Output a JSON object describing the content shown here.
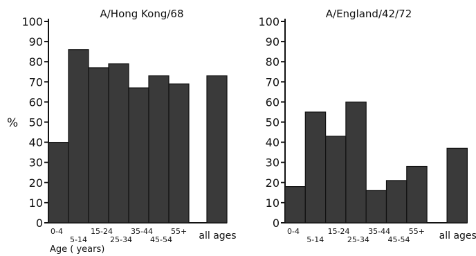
{
  "figure": {
    "y_symbol": "%",
    "x_caption": "Age ( years)"
  },
  "chart_data": [
    {
      "type": "bar",
      "title": "A/Hong Kong/68",
      "ylabel": "%",
      "xlabel": "Age ( years)",
      "ylim": [
        0,
        100
      ],
      "yticks": [
        0,
        10,
        20,
        30,
        40,
        50,
        60,
        70,
        80,
        90,
        100
      ],
      "categories": [
        "0-4",
        "5-14",
        "15-24",
        "25-34",
        "35-44",
        "45-54",
        "55+",
        "all ages"
      ],
      "values": [
        40,
        86,
        77,
        79,
        67,
        73,
        69,
        73
      ],
      "bar_color": "#3a3a3a"
    },
    {
      "type": "bar",
      "title": "A/England/42/72",
      "ylabel": "%",
      "xlabel": "",
      "ylim": [
        0,
        100
      ],
      "yticks": [
        0,
        10,
        20,
        30,
        40,
        50,
        60,
        70,
        80,
        90,
        100
      ],
      "categories": [
        "0-4",
        "5-14",
        "15-24",
        "25-34",
        "35-44",
        "45-54",
        "55+",
        "all ages"
      ],
      "values": [
        18,
        55,
        43,
        60,
        16,
        21,
        28,
        37
      ],
      "bar_color": "#3a3a3a"
    }
  ]
}
